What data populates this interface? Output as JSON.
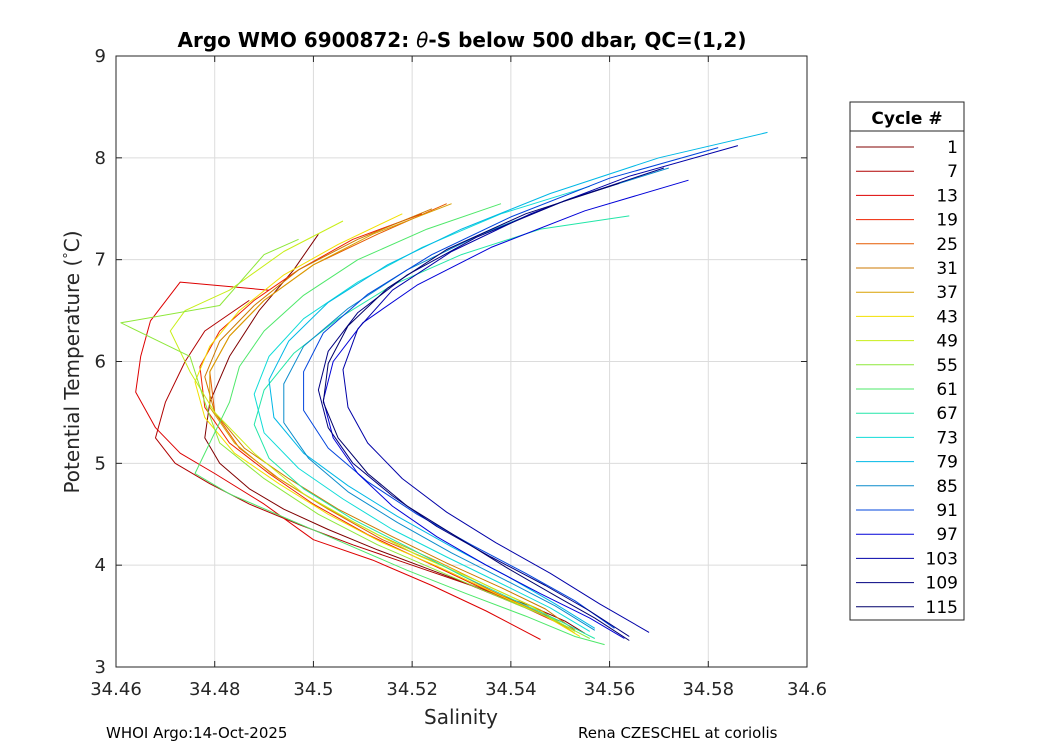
{
  "chart_data": {
    "type": "line",
    "title": "Argo WMO 6900872: θ-S below 500 dbar,  QC=(1,2)",
    "title_parts": {
      "before": "Argo WMO 6900872: ",
      "theta": "θ",
      "after": "-S below 500 dbar,  QC=(1,2)"
    },
    "xlabel": "Salinity",
    "ylabel": "Potential Temperature (°C)",
    "ylabel_parts": {
      "before": "Potential Temperature (",
      "deg": "°",
      "after": "C)"
    },
    "xlim": [
      34.46,
      34.6
    ],
    "ylim": [
      3,
      9
    ],
    "xticks": [
      34.46,
      34.48,
      34.5,
      34.52,
      34.54,
      34.56,
      34.58,
      34.6
    ],
    "xtick_labels": [
      "34.46",
      "34.48",
      "34.5",
      "34.52",
      "34.54",
      "34.56",
      "34.58",
      "34.6"
    ],
    "yticks": [
      3,
      4,
      5,
      6,
      7,
      8,
      9
    ],
    "ytick_labels": [
      "3",
      "4",
      "5",
      "6",
      "7",
      "8",
      "9"
    ],
    "grid": true,
    "legend": {
      "title": "Cycle #",
      "placement": "outside-right",
      "entries": [
        {
          "label": "1",
          "color": "#800000"
        },
        {
          "label": "7",
          "color": "#b00000"
        },
        {
          "label": "13",
          "color": "#dd0000"
        },
        {
          "label": "19",
          "color": "#ee2200"
        },
        {
          "label": "25",
          "color": "#e65a00"
        },
        {
          "label": "31",
          "color": "#cc7a00"
        },
        {
          "label": "37",
          "color": "#d9a000"
        },
        {
          "label": "43",
          "color": "#f2e000"
        },
        {
          "label": "49",
          "color": "#c8ee18"
        },
        {
          "label": "55",
          "color": "#8ee83a"
        },
        {
          "label": "61",
          "color": "#4ee86a"
        },
        {
          "label": "67",
          "color": "#22e6a8"
        },
        {
          "label": "73",
          "color": "#10dcd8"
        },
        {
          "label": "79",
          "color": "#00b8e6"
        },
        {
          "label": "85",
          "color": "#0a8ccc"
        },
        {
          "label": "91",
          "color": "#0044dd"
        },
        {
          "label": "97",
          "color": "#0000d8"
        },
        {
          "label": "103",
          "color": "#0000a8"
        },
        {
          "label": "109",
          "color": "#000080"
        },
        {
          "label": "115",
          "color": "#00006a"
        }
      ]
    },
    "series": [
      {
        "name": "1",
        "color": "#800000",
        "x": [
          34.501,
          34.496,
          34.489,
          34.483,
          34.479,
          34.478,
          34.481,
          34.487,
          34.494,
          34.503,
          34.513,
          34.524,
          34.535,
          34.544,
          34.551,
          34.555
        ],
        "y": [
          7.25,
          6.9,
          6.5,
          6.05,
          5.6,
          5.25,
          5.0,
          4.75,
          4.55,
          4.35,
          4.15,
          3.95,
          3.75,
          3.6,
          3.45,
          3.33
        ]
      },
      {
        "name": "7",
        "color": "#b00000",
        "x": [
          34.487,
          34.478,
          34.474,
          34.47,
          34.468,
          34.472,
          34.479,
          34.487,
          34.497,
          34.508,
          34.52,
          34.532,
          34.542,
          34.55
        ],
        "y": [
          6.6,
          6.3,
          6.0,
          5.6,
          5.25,
          5.0,
          4.8,
          4.6,
          4.4,
          4.2,
          4.0,
          3.8,
          3.6,
          3.45
        ]
      },
      {
        "name": "13",
        "color": "#dd0000",
        "x": [
          34.491,
          34.473,
          34.467,
          34.465,
          34.464,
          34.468,
          34.473,
          34.48,
          34.49,
          34.5,
          34.512,
          34.524,
          34.535,
          34.546
        ],
        "y": [
          6.7,
          6.78,
          6.4,
          6.05,
          5.7,
          5.35,
          5.1,
          4.9,
          4.6,
          4.25,
          4.05,
          3.8,
          3.55,
          3.27
        ]
      },
      {
        "name": "19",
        "color": "#ee2200",
        "x": [
          34.522,
          34.508,
          34.497,
          34.488,
          34.481,
          34.477,
          34.478,
          34.483,
          34.491,
          34.5,
          34.511,
          34.522,
          34.533,
          34.543,
          34.551
        ],
        "y": [
          7.45,
          7.2,
          6.9,
          6.6,
          6.3,
          5.95,
          5.55,
          5.2,
          4.9,
          4.6,
          4.3,
          4.05,
          3.8,
          3.58,
          3.4
        ]
      },
      {
        "name": "25",
        "color": "#e65a00",
        "x": [
          34.527,
          34.513,
          34.5,
          34.49,
          34.483,
          34.479,
          34.48,
          34.485,
          34.493,
          34.503,
          34.514,
          34.526,
          34.536,
          34.545,
          34.552
        ],
        "y": [
          7.55,
          7.25,
          6.95,
          6.6,
          6.25,
          5.9,
          5.5,
          5.15,
          4.85,
          4.55,
          4.25,
          4.0,
          3.75,
          3.55,
          3.38
        ]
      },
      {
        "name": "31",
        "color": "#cc7a00",
        "x": [
          34.524,
          34.509,
          34.497,
          34.488,
          34.481,
          34.478,
          34.48,
          34.486,
          34.495,
          34.505,
          34.516,
          34.527,
          34.538,
          34.547,
          34.553
        ],
        "y": [
          7.5,
          7.2,
          6.9,
          6.55,
          6.2,
          5.85,
          5.5,
          5.15,
          4.85,
          4.55,
          4.28,
          4.02,
          3.78,
          3.57,
          3.36
        ]
      },
      {
        "name": "37",
        "color": "#d9a000",
        "x": [
          34.528,
          34.512,
          34.5,
          34.49,
          34.483,
          34.479,
          34.479,
          34.484,
          34.492,
          34.502,
          34.513,
          34.525,
          34.536,
          34.546,
          34.553
        ],
        "y": [
          7.55,
          7.25,
          6.95,
          6.6,
          6.25,
          5.9,
          5.55,
          5.2,
          4.88,
          4.58,
          4.3,
          4.04,
          3.78,
          3.56,
          3.33
        ]
      },
      {
        "name": "43",
        "color": "#f2e000",
        "x": [
          34.518,
          34.505,
          34.494,
          34.485,
          34.479,
          34.476,
          34.478,
          34.484,
          34.493,
          34.503,
          34.514,
          34.526,
          34.537,
          34.547,
          34.554
        ],
        "y": [
          7.45,
          7.15,
          6.85,
          6.5,
          6.15,
          5.8,
          5.45,
          5.1,
          4.8,
          4.5,
          4.22,
          3.97,
          3.72,
          3.5,
          3.3
        ]
      },
      {
        "name": "49",
        "color": "#c8ee18",
        "x": [
          34.506,
          34.494,
          34.483,
          34.474,
          34.471,
          34.475,
          34.48,
          34.488,
          34.498,
          34.509,
          34.521,
          34.533,
          34.544,
          34.553
        ],
        "y": [
          7.38,
          7.08,
          6.7,
          6.5,
          6.3,
          5.9,
          5.5,
          5.1,
          4.7,
          4.4,
          4.1,
          3.85,
          3.6,
          3.35
        ]
      },
      {
        "name": "55",
        "color": "#8ee83a",
        "x": [
          34.497,
          34.49,
          34.481,
          34.461,
          34.475,
          34.478,
          34.481,
          34.49,
          34.501,
          34.513,
          34.525,
          34.537,
          34.548,
          34.556
        ],
        "y": [
          7.2,
          7.05,
          6.55,
          6.38,
          6.05,
          5.6,
          5.2,
          4.85,
          4.5,
          4.2,
          3.95,
          3.7,
          3.48,
          3.28
        ]
      },
      {
        "name": "61",
        "color": "#4ee86a",
        "x": [
          34.538,
          34.523,
          34.509,
          34.498,
          34.49,
          34.485,
          34.483,
          34.476,
          34.483,
          34.495,
          34.507,
          34.519,
          34.531,
          34.543,
          34.553,
          34.559
        ],
        "y": [
          7.55,
          7.3,
          7.0,
          6.65,
          6.3,
          5.95,
          5.6,
          4.9,
          4.7,
          4.45,
          4.2,
          3.95,
          3.72,
          3.5,
          3.3,
          3.22
        ]
      },
      {
        "name": "67",
        "color": "#22e6a8",
        "x": [
          34.564,
          34.546,
          34.53,
          34.516,
          34.505,
          34.496,
          34.49,
          34.488,
          34.491,
          34.498,
          34.508,
          34.519,
          34.53,
          34.541,
          34.55,
          34.557
        ],
        "y": [
          7.43,
          7.3,
          7.05,
          6.75,
          6.42,
          6.08,
          5.72,
          5.38,
          5.05,
          4.75,
          4.45,
          4.18,
          3.9,
          3.65,
          3.45,
          3.28
        ]
      },
      {
        "name": "73",
        "color": "#10dcd8",
        "x": [
          34.556,
          34.538,
          34.522,
          34.509,
          34.498,
          34.491,
          34.488,
          34.49,
          34.497,
          34.506,
          34.516,
          34.527,
          34.538,
          34.548,
          34.556
        ],
        "y": [
          7.72,
          7.45,
          7.12,
          6.78,
          6.42,
          6.05,
          5.68,
          5.3,
          4.95,
          4.65,
          4.35,
          4.08,
          3.82,
          3.58,
          3.35
        ]
      },
      {
        "name": "79",
        "color": "#00b8e6",
        "x": [
          34.592,
          34.57,
          34.548,
          34.53,
          34.515,
          34.503,
          34.495,
          34.491,
          34.492,
          34.498,
          34.507,
          34.517,
          34.528,
          34.539,
          34.549,
          34.557
        ],
        "y": [
          8.25,
          8.0,
          7.65,
          7.3,
          6.95,
          6.58,
          6.2,
          5.82,
          5.45,
          5.1,
          4.78,
          4.48,
          4.18,
          3.9,
          3.62,
          3.38
        ]
      },
      {
        "name": "85",
        "color": "#0a8ccc",
        "x": [
          34.572,
          34.552,
          34.534,
          34.519,
          34.507,
          34.498,
          34.494,
          34.494,
          34.499,
          34.507,
          34.517,
          34.528,
          34.539,
          34.549,
          34.557
        ],
        "y": [
          7.9,
          7.6,
          7.25,
          6.9,
          6.52,
          6.15,
          5.78,
          5.4,
          5.05,
          4.72,
          4.42,
          4.12,
          3.85,
          3.6,
          3.36
        ]
      },
      {
        "name": "91",
        "color": "#0044dd",
        "x": [
          34.582,
          34.56,
          34.54,
          34.524,
          34.511,
          34.502,
          34.498,
          34.498,
          34.503,
          34.511,
          34.521,
          34.532,
          34.543,
          34.553,
          34.561
        ],
        "y": [
          8.1,
          7.8,
          7.42,
          7.05,
          6.66,
          6.28,
          5.9,
          5.52,
          5.15,
          4.82,
          4.5,
          4.2,
          3.92,
          3.65,
          3.38
        ]
      },
      {
        "name": "97",
        "color": "#0000d8",
        "x": [
          34.576,
          34.555,
          34.536,
          34.521,
          34.51,
          34.504,
          34.502,
          34.504,
          34.509,
          34.516,
          34.525,
          34.535,
          34.546,
          34.556,
          34.563
        ],
        "y": [
          7.78,
          7.48,
          7.12,
          6.75,
          6.38,
          6.0,
          5.62,
          5.25,
          4.9,
          4.58,
          4.28,
          4.0,
          3.72,
          3.48,
          3.28
        ]
      },
      {
        "name": "103",
        "color": "#0000a8",
        "x": [
          34.586,
          34.564,
          34.544,
          34.528,
          34.516,
          34.509,
          34.506,
          34.507,
          34.511,
          34.518,
          34.527,
          34.537,
          34.548,
          34.558,
          34.568
        ],
        "y": [
          8.12,
          7.82,
          7.45,
          7.08,
          6.7,
          6.32,
          5.92,
          5.55,
          5.2,
          4.85,
          4.52,
          4.22,
          3.92,
          3.62,
          3.34
        ]
      },
      {
        "name": "109",
        "color": "#000080",
        "x": [
          34.571,
          34.551,
          34.533,
          34.519,
          34.509,
          34.503,
          34.501,
          34.503,
          34.508,
          34.516,
          34.525,
          34.536,
          34.547,
          34.556,
          34.564
        ],
        "y": [
          7.9,
          7.58,
          7.22,
          6.85,
          6.48,
          6.1,
          5.72,
          5.35,
          5.0,
          4.68,
          4.38,
          4.08,
          3.8,
          3.55,
          3.3
        ]
      },
      {
        "name": "115",
        "color": "#00006a",
        "x": [
          34.562,
          34.543,
          34.527,
          34.515,
          34.507,
          34.503,
          34.502,
          34.505,
          34.511,
          34.519,
          34.529,
          34.539,
          34.549,
          34.557,
          34.564
        ],
        "y": [
          7.75,
          7.45,
          7.1,
          6.72,
          6.35,
          5.98,
          5.6,
          5.25,
          4.9,
          4.58,
          4.28,
          3.98,
          3.7,
          3.48,
          3.26
        ]
      }
    ]
  },
  "footer": {
    "left": "WHOI Argo:14-Oct-2025",
    "right": "Rena CZESCHEL at coriolis"
  }
}
